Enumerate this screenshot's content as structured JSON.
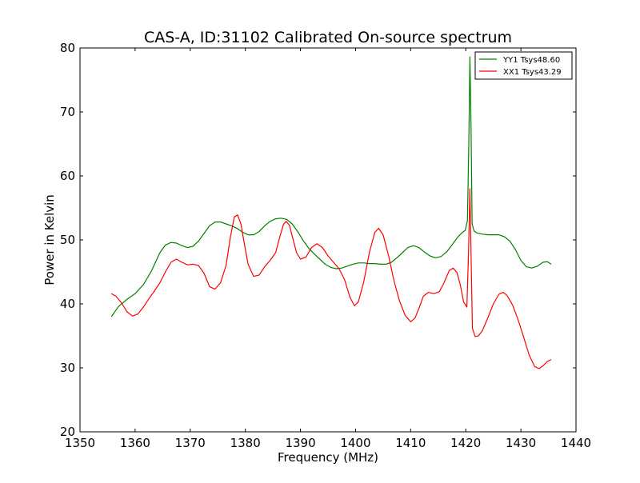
{
  "chart_data": {
    "type": "line",
    "title": "CAS-A, ID:31102 Calibrated On-source spectrum",
    "xlabel": "Frequency (MHz)",
    "ylabel": "Power in Kelvin",
    "xlim": [
      1350,
      1440
    ],
    "ylim": [
      20,
      80
    ],
    "xticks": [
      1350,
      1360,
      1370,
      1380,
      1390,
      1400,
      1410,
      1420,
      1430,
      1440
    ],
    "yticks": [
      20,
      30,
      40,
      50,
      60,
      70,
      80
    ],
    "grid": false,
    "legend_position": "top-right",
    "series": [
      {
        "name": "YY1 Tsys48.60",
        "color": "#008000",
        "points": [
          [
            1355.7,
            38.0
          ],
          [
            1357.0,
            39.6
          ],
          [
            1358.5,
            40.7
          ],
          [
            1360.0,
            41.6
          ],
          [
            1361.5,
            43.0
          ],
          [
            1363.0,
            45.2
          ],
          [
            1364.5,
            48.0
          ],
          [
            1365.5,
            49.2
          ],
          [
            1366.5,
            49.6
          ],
          [
            1367.5,
            49.5
          ],
          [
            1368.5,
            49.1
          ],
          [
            1369.5,
            48.8
          ],
          [
            1370.5,
            49.0
          ],
          [
            1371.5,
            49.8
          ],
          [
            1372.5,
            51.0
          ],
          [
            1373.5,
            52.2
          ],
          [
            1374.5,
            52.8
          ],
          [
            1375.5,
            52.8
          ],
          [
            1376.5,
            52.5
          ],
          [
            1377.5,
            52.2
          ],
          [
            1378.5,
            51.8
          ],
          [
            1379.5,
            51.2
          ],
          [
            1380.5,
            50.8
          ],
          [
            1381.5,
            50.8
          ],
          [
            1382.5,
            51.3
          ],
          [
            1383.5,
            52.2
          ],
          [
            1384.5,
            52.9
          ],
          [
            1385.5,
            53.3
          ],
          [
            1386.5,
            53.4
          ],
          [
            1387.5,
            53.2
          ],
          [
            1388.5,
            52.5
          ],
          [
            1389.5,
            51.3
          ],
          [
            1390.5,
            49.9
          ],
          [
            1391.5,
            48.7
          ],
          [
            1392.5,
            47.8
          ],
          [
            1393.5,
            47.0
          ],
          [
            1394.5,
            46.2
          ],
          [
            1395.5,
            45.7
          ],
          [
            1396.5,
            45.5
          ],
          [
            1397.5,
            45.6
          ],
          [
            1398.5,
            45.9
          ],
          [
            1399.5,
            46.2
          ],
          [
            1400.5,
            46.4
          ],
          [
            1401.5,
            46.4
          ],
          [
            1402.5,
            46.3
          ],
          [
            1403.5,
            46.3
          ],
          [
            1404.5,
            46.2
          ],
          [
            1405.5,
            46.2
          ],
          [
            1406.5,
            46.5
          ],
          [
            1407.5,
            47.2
          ],
          [
            1408.5,
            48.0
          ],
          [
            1409.5,
            48.8
          ],
          [
            1410.5,
            49.1
          ],
          [
            1411.5,
            48.8
          ],
          [
            1412.5,
            48.1
          ],
          [
            1413.5,
            47.5
          ],
          [
            1414.5,
            47.2
          ],
          [
            1415.5,
            47.4
          ],
          [
            1416.5,
            48.1
          ],
          [
            1417.5,
            49.2
          ],
          [
            1418.5,
            50.4
          ],
          [
            1419.3,
            51.1
          ],
          [
            1419.9,
            51.5
          ],
          [
            1420.3,
            53.0
          ],
          [
            1420.55,
            65.0
          ],
          [
            1420.75,
            78.6
          ],
          [
            1420.95,
            68.0
          ],
          [
            1421.15,
            52.5
          ],
          [
            1421.5,
            51.4
          ],
          [
            1422.0,
            51.1
          ],
          [
            1423.0,
            50.9
          ],
          [
            1424.0,
            50.8
          ],
          [
            1425.0,
            50.8
          ],
          [
            1426.0,
            50.8
          ],
          [
            1427.0,
            50.5
          ],
          [
            1428.0,
            49.8
          ],
          [
            1429.0,
            48.5
          ],
          [
            1430.0,
            46.8
          ],
          [
            1431.0,
            45.8
          ],
          [
            1432.0,
            45.6
          ],
          [
            1433.0,
            45.9
          ],
          [
            1434.0,
            46.5
          ],
          [
            1434.8,
            46.6
          ],
          [
            1435.5,
            46.2
          ]
        ]
      },
      {
        "name": "XX1 Tsys43.29",
        "color": "#ff0000",
        "points": [
          [
            1355.7,
            41.6
          ],
          [
            1356.5,
            41.2
          ],
          [
            1357.5,
            40.2
          ],
          [
            1358.5,
            38.8
          ],
          [
            1359.5,
            38.1
          ],
          [
            1360.5,
            38.4
          ],
          [
            1361.5,
            39.5
          ],
          [
            1362.5,
            40.8
          ],
          [
            1363.5,
            42.0
          ],
          [
            1364.5,
            43.3
          ],
          [
            1365.5,
            45.0
          ],
          [
            1366.5,
            46.5
          ],
          [
            1367.5,
            47.0
          ],
          [
            1368.5,
            46.5
          ],
          [
            1369.5,
            46.1
          ],
          [
            1370.5,
            46.2
          ],
          [
            1371.5,
            46.0
          ],
          [
            1372.5,
            44.8
          ],
          [
            1373.5,
            42.7
          ],
          [
            1374.5,
            42.3
          ],
          [
            1375.5,
            43.3
          ],
          [
            1376.5,
            46.0
          ],
          [
            1377.3,
            50.5
          ],
          [
            1378.0,
            53.6
          ],
          [
            1378.6,
            53.9
          ],
          [
            1379.2,
            52.5
          ],
          [
            1379.8,
            49.5
          ],
          [
            1380.5,
            46.2
          ],
          [
            1381.5,
            44.3
          ],
          [
            1382.5,
            44.5
          ],
          [
            1383.5,
            45.8
          ],
          [
            1384.5,
            46.8
          ],
          [
            1385.5,
            48.0
          ],
          [
            1386.2,
            50.3
          ],
          [
            1386.9,
            52.4
          ],
          [
            1387.4,
            52.9
          ],
          [
            1388.0,
            52.3
          ],
          [
            1388.5,
            50.6
          ],
          [
            1389.3,
            48.0
          ],
          [
            1390.0,
            47.0
          ],
          [
            1391.0,
            47.3
          ],
          [
            1392.0,
            48.8
          ],
          [
            1393.0,
            49.4
          ],
          [
            1394.0,
            48.8
          ],
          [
            1395.0,
            47.5
          ],
          [
            1396.0,
            46.5
          ],
          [
            1397.0,
            45.5
          ],
          [
            1398.0,
            43.8
          ],
          [
            1399.0,
            41.0
          ],
          [
            1399.8,
            39.7
          ],
          [
            1400.5,
            40.3
          ],
          [
            1401.5,
            43.5
          ],
          [
            1402.5,
            48.0
          ],
          [
            1403.5,
            51.2
          ],
          [
            1404.2,
            51.8
          ],
          [
            1405.0,
            50.8
          ],
          [
            1406.0,
            47.5
          ],
          [
            1407.0,
            43.5
          ],
          [
            1408.0,
            40.4
          ],
          [
            1409.0,
            38.2
          ],
          [
            1410.0,
            37.2
          ],
          [
            1410.8,
            37.8
          ],
          [
            1411.5,
            39.3
          ],
          [
            1412.3,
            41.2
          ],
          [
            1413.2,
            41.8
          ],
          [
            1414.2,
            41.6
          ],
          [
            1415.2,
            41.9
          ],
          [
            1416.0,
            43.2
          ],
          [
            1417.0,
            45.2
          ],
          [
            1417.7,
            45.6
          ],
          [
            1418.4,
            44.9
          ],
          [
            1419.0,
            43.0
          ],
          [
            1419.6,
            40.3
          ],
          [
            1420.2,
            39.5
          ],
          [
            1420.5,
            48.0
          ],
          [
            1420.75,
            58.0
          ],
          [
            1420.95,
            48.0
          ],
          [
            1421.2,
            36.2
          ],
          [
            1421.7,
            34.9
          ],
          [
            1422.3,
            35.0
          ],
          [
            1423.0,
            35.8
          ],
          [
            1424.0,
            37.8
          ],
          [
            1425.0,
            40.0
          ],
          [
            1426.0,
            41.5
          ],
          [
            1426.8,
            41.8
          ],
          [
            1427.5,
            41.3
          ],
          [
            1428.5,
            39.8
          ],
          [
            1429.5,
            37.5
          ],
          [
            1430.5,
            34.8
          ],
          [
            1431.5,
            32.0
          ],
          [
            1432.5,
            30.2
          ],
          [
            1433.3,
            29.9
          ],
          [
            1434.0,
            30.3
          ],
          [
            1434.8,
            31.0
          ],
          [
            1435.5,
            31.3
          ]
        ]
      }
    ]
  }
}
